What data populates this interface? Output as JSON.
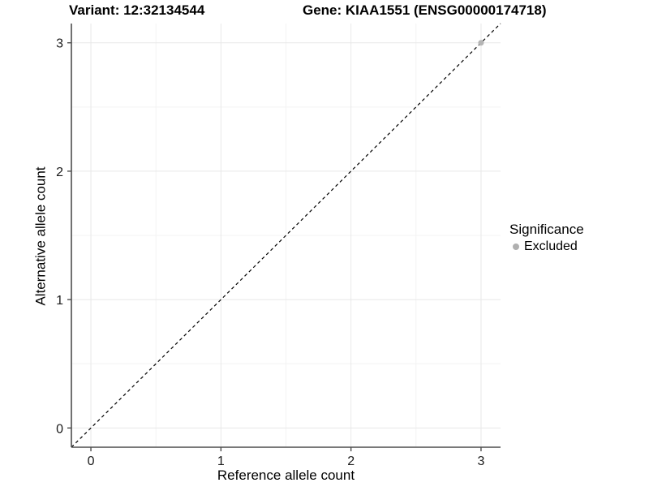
{
  "header": {
    "variant_title": "Variant: 12:32134544",
    "gene_title": "Gene: KIAA1551 (ENSG00000174718)"
  },
  "chart_data": {
    "type": "scatter",
    "title_left": "Variant: 12:32134544",
    "title_right": "Gene: KIAA1551 (ENSG00000174718)",
    "xlabel": "Reference allele count",
    "ylabel": "Alternative allele count",
    "xlim": [
      -0.15,
      3.15
    ],
    "ylim": [
      -0.15,
      3.15
    ],
    "xticks": [
      0,
      1,
      2,
      3
    ],
    "yticks": [
      0,
      1,
      2,
      3
    ],
    "minor_xticks": [
      0.5,
      1.5,
      2.5
    ],
    "minor_yticks": [
      0.5,
      1.5,
      2.5
    ],
    "grid": true,
    "reference_line": {
      "kind": "identity y=x",
      "style": "dashed",
      "color": "#000000"
    },
    "series": [
      {
        "name": "Excluded",
        "color": "#b5b5b5",
        "points": [
          [
            3,
            3
          ]
        ]
      }
    ],
    "legend": {
      "title": "Significance",
      "position": "right",
      "entries": [
        {
          "label": "Excluded",
          "color": "#b0b0b0"
        }
      ]
    }
  },
  "style_colors": {
    "axis_line": "#4d4d4d",
    "grid_major": "#e8e8e8",
    "grid_minor": "#f3f3f3",
    "tick_label": "#1a1a1a",
    "point_fill": "#b5b5b5"
  }
}
